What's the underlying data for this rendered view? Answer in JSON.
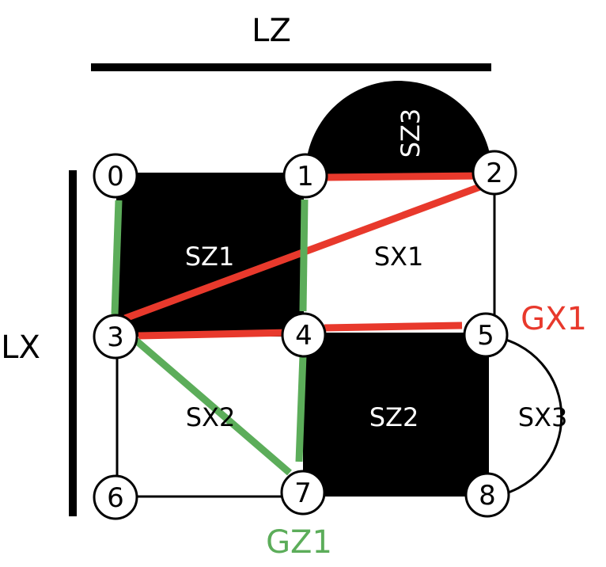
{
  "axis_labels": {
    "lz": "LZ",
    "lx": "LX"
  },
  "nodes": [
    {
      "id": "0",
      "label": "0"
    },
    {
      "id": "1",
      "label": "1"
    },
    {
      "id": "2",
      "label": "2"
    },
    {
      "id": "3",
      "label": "3"
    },
    {
      "id": "4",
      "label": "4"
    },
    {
      "id": "5",
      "label": "5"
    },
    {
      "id": "6",
      "label": "6"
    },
    {
      "id": "7",
      "label": "7"
    },
    {
      "id": "8",
      "label": "8"
    }
  ],
  "regions": {
    "sz1": "SZ1",
    "sz2": "SZ2",
    "sz3": "SZ3",
    "sx1": "SX1",
    "sx2": "SX2",
    "sx3": "SX3"
  },
  "group_labels": {
    "gx1": "GX1",
    "gz1": "GZ1"
  },
  "colors": {
    "gx_red": "#e8392c",
    "gz_green": "#5cad5a",
    "stabilizer_fill": "#000000",
    "edge": "#000000"
  }
}
